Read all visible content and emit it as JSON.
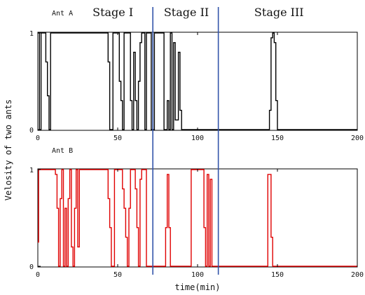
{
  "chart_data": {
    "type": "line",
    "xlabel": "time(min)",
    "ylabel": "Velosity of two ants",
    "xlim": [
      0,
      200
    ],
    "ylim": [
      0,
      1
    ],
    "x_ticks": [
      "0",
      "50",
      "100",
      "150",
      "200"
    ],
    "y_ticks": [
      "0",
      "1"
    ],
    "grid": false,
    "stage_dividers": [
      72,
      113
    ],
    "stage_labels": [
      {
        "label": "Stage I",
        "x": 47
      },
      {
        "label": "Stage II",
        "x": 93
      },
      {
        "label": "Stage III",
        "x": 151
      }
    ],
    "series": [
      {
        "name": "Ant A",
        "color": "#000000",
        "points": [
          [
            0,
            1
          ],
          [
            1,
            1
          ],
          [
            1,
            0
          ],
          [
            2,
            0
          ],
          [
            2,
            1
          ],
          [
            5,
            1
          ],
          [
            5,
            0.7
          ],
          [
            6,
            0.7
          ],
          [
            6,
            0.35
          ],
          [
            7,
            0.35
          ],
          [
            7,
            0
          ],
          [
            8,
            0
          ],
          [
            8,
            1
          ],
          [
            44,
            1
          ],
          [
            44,
            0.7
          ],
          [
            45,
            0.7
          ],
          [
            45,
            0
          ],
          [
            47,
            0
          ],
          [
            47,
            1
          ],
          [
            51,
            1
          ],
          [
            51,
            0.5
          ],
          [
            52,
            0.5
          ],
          [
            52,
            0.3
          ],
          [
            53,
            0.3
          ],
          [
            53,
            0
          ],
          [
            54,
            0
          ],
          [
            54,
            1
          ],
          [
            58,
            1
          ],
          [
            58,
            0.3
          ],
          [
            59,
            0.3
          ],
          [
            59,
            0
          ],
          [
            60,
            0
          ],
          [
            60,
            0.8
          ],
          [
            61,
            0.8
          ],
          [
            61,
            0.3
          ],
          [
            62,
            0.3
          ],
          [
            62,
            0
          ],
          [
            63,
            0
          ],
          [
            63,
            0.5
          ],
          [
            64,
            0.5
          ],
          [
            64,
            0.9
          ],
          [
            65,
            0.9
          ],
          [
            65,
            1
          ],
          [
            67,
            1
          ],
          [
            67,
            0
          ],
          [
            68,
            0
          ],
          [
            68,
            1
          ],
          [
            71,
            1
          ],
          [
            71,
            0
          ],
          [
            73,
            0
          ],
          [
            73,
            1
          ],
          [
            79,
            1
          ],
          [
            79,
            0
          ],
          [
            81,
            0
          ],
          [
            81,
            0.3
          ],
          [
            82,
            0.3
          ],
          [
            82,
            0
          ],
          [
            83,
            0
          ],
          [
            83,
            1
          ],
          [
            84,
            1
          ],
          [
            84,
            0
          ],
          [
            85,
            0
          ],
          [
            85,
            0.9
          ],
          [
            86,
            0.9
          ],
          [
            86,
            0.1
          ],
          [
            88,
            0.1
          ],
          [
            88,
            0.8
          ],
          [
            89,
            0.8
          ],
          [
            89,
            0.2
          ],
          [
            90,
            0.2
          ],
          [
            90,
            0
          ],
          [
            145,
            0
          ],
          [
            145,
            0.2
          ],
          [
            146,
            0.2
          ],
          [
            146,
            0.95
          ],
          [
            147,
            0.95
          ],
          [
            147,
            1
          ],
          [
            148,
            1
          ],
          [
            148,
            0.9
          ],
          [
            149,
            0.9
          ],
          [
            149,
            0.3
          ],
          [
            150,
            0.3
          ],
          [
            150,
            0
          ],
          [
            200,
            0
          ]
        ]
      },
      {
        "name": "Ant B",
        "color": "#e00000",
        "points": [
          [
            0,
            0.25
          ],
          [
            0.5,
            0.25
          ],
          [
            0.5,
            1
          ],
          [
            11,
            1
          ],
          [
            11,
            0.95
          ],
          [
            12,
            0.95
          ],
          [
            12,
            0.6
          ],
          [
            13,
            0.6
          ],
          [
            13,
            0
          ],
          [
            14,
            0
          ],
          [
            14,
            0.7
          ],
          [
            15,
            0.7
          ],
          [
            15,
            1
          ],
          [
            16,
            1
          ],
          [
            16,
            0
          ],
          [
            17,
            0
          ],
          [
            17,
            0.6
          ],
          [
            18,
            0.6
          ],
          [
            18,
            0
          ],
          [
            19,
            0
          ],
          [
            19,
            0.7
          ],
          [
            20,
            0.7
          ],
          [
            20,
            1
          ],
          [
            21,
            1
          ],
          [
            21,
            0.2
          ],
          [
            22,
            0.2
          ],
          [
            22,
            0
          ],
          [
            23,
            0
          ],
          [
            23,
            0.6
          ],
          [
            24,
            0.6
          ],
          [
            24,
            1
          ],
          [
            25,
            1
          ],
          [
            25,
            0.2
          ],
          [
            26,
            0.2
          ],
          [
            26,
            1
          ],
          [
            44,
            1
          ],
          [
            44,
            0.7
          ],
          [
            45,
            0.7
          ],
          [
            45,
            0.4
          ],
          [
            46,
            0.4
          ],
          [
            46,
            0
          ],
          [
            48,
            0
          ],
          [
            48,
            1
          ],
          [
            53,
            1
          ],
          [
            53,
            0.8
          ],
          [
            54,
            0.8
          ],
          [
            54,
            0.6
          ],
          [
            55,
            0.6
          ],
          [
            55,
            0.3
          ],
          [
            56,
            0.3
          ],
          [
            56,
            0
          ],
          [
            57,
            0
          ],
          [
            57,
            0.6
          ],
          [
            58,
            0.6
          ],
          [
            58,
            1
          ],
          [
            61,
            1
          ],
          [
            61,
            0.8
          ],
          [
            62,
            0.8
          ],
          [
            62,
            0.4
          ],
          [
            63,
            0.4
          ],
          [
            63,
            0
          ],
          [
            64,
            0
          ],
          [
            64,
            0.9
          ],
          [
            65,
            0.9
          ],
          [
            65,
            1
          ],
          [
            68,
            1
          ],
          [
            68,
            0
          ],
          [
            80,
            0
          ],
          [
            80,
            0.4
          ],
          [
            81,
            0.4
          ],
          [
            81,
            0.95
          ],
          [
            82,
            0.95
          ],
          [
            82,
            0.4
          ],
          [
            83,
            0.4
          ],
          [
            83,
            0
          ],
          [
            96,
            0
          ],
          [
            96,
            1
          ],
          [
            104,
            1
          ],
          [
            104,
            0.4
          ],
          [
            105,
            0.4
          ],
          [
            105,
            0
          ],
          [
            106,
            0
          ],
          [
            106,
            0.95
          ],
          [
            107,
            0.95
          ],
          [
            107,
            0
          ],
          [
            108,
            0
          ],
          [
            108,
            0.9
          ],
          [
            109,
            0.9
          ],
          [
            109,
            0
          ],
          [
            144,
            0
          ],
          [
            144,
            0.95
          ],
          [
            146,
            0.95
          ],
          [
            146,
            0.3
          ],
          [
            147,
            0.3
          ],
          [
            147,
            0
          ],
          [
            200,
            0
          ]
        ]
      }
    ]
  }
}
